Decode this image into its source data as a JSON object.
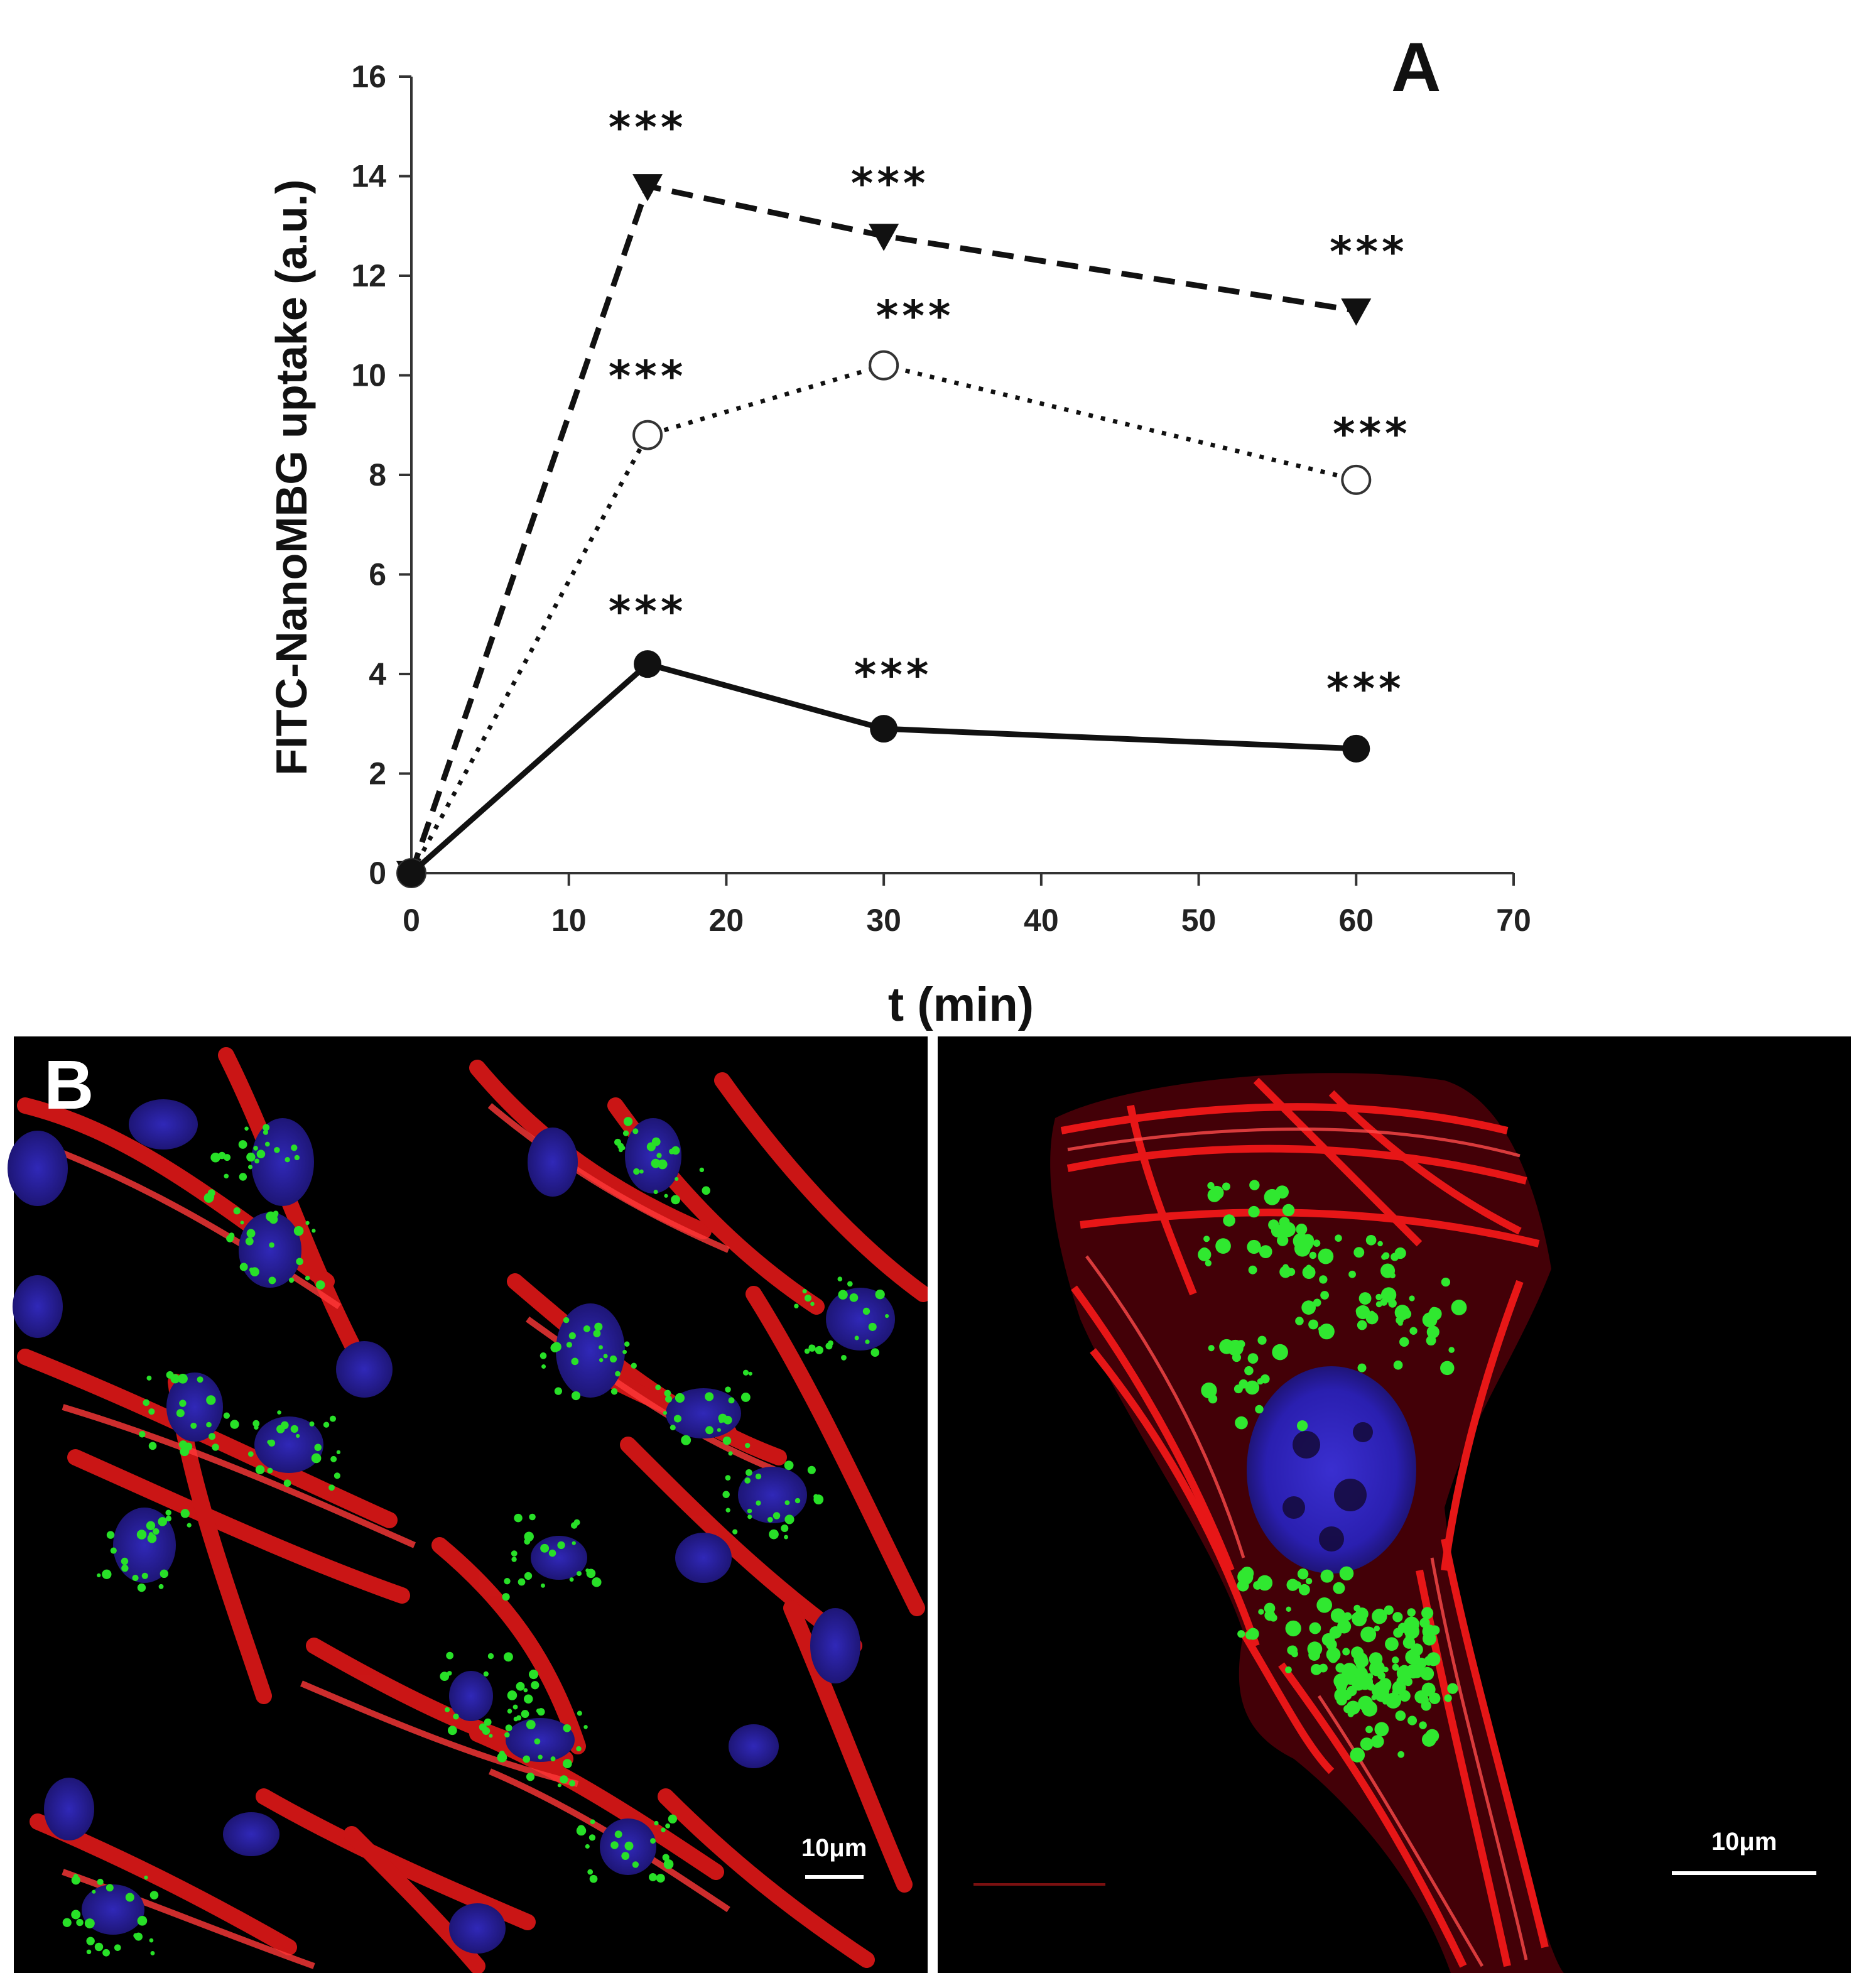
{
  "panel_a_label": "A",
  "panel_b_label": "B",
  "chart_data": {
    "type": "line",
    "xlabel": "t (min)",
    "ylabel": "FITC-NanoMBG uptake (a.u.)",
    "xlim": [
      0,
      70
    ],
    "ylim": [
      0,
      16
    ],
    "xticks": [
      0,
      10,
      20,
      30,
      40,
      50,
      60,
      70
    ],
    "yticks": [
      0,
      2,
      4,
      6,
      8,
      10,
      12,
      14,
      16
    ],
    "grid": false,
    "legend": "none",
    "x": [
      0,
      15,
      30,
      60
    ],
    "series": [
      {
        "marker": "down-triangle-filled",
        "line_style": "dashed",
        "values": [
          0,
          13.8,
          12.8,
          11.3
        ],
        "annotations": [
          "",
          "***",
          "***",
          "***"
        ]
      },
      {
        "marker": "circle-open",
        "line_style": "dotted",
        "values": [
          0,
          8.8,
          10.2,
          7.9
        ],
        "annotations": [
          "",
          "***",
          "***",
          "***"
        ]
      },
      {
        "marker": "circle-filled",
        "line_style": "solid",
        "values": [
          0,
          4.2,
          2.9,
          2.5
        ],
        "annotations": [
          "",
          "***",
          "***",
          "***"
        ]
      }
    ]
  },
  "micrographs": {
    "left_scale_bar": "10μm",
    "right_scale_bar": "10μm"
  }
}
